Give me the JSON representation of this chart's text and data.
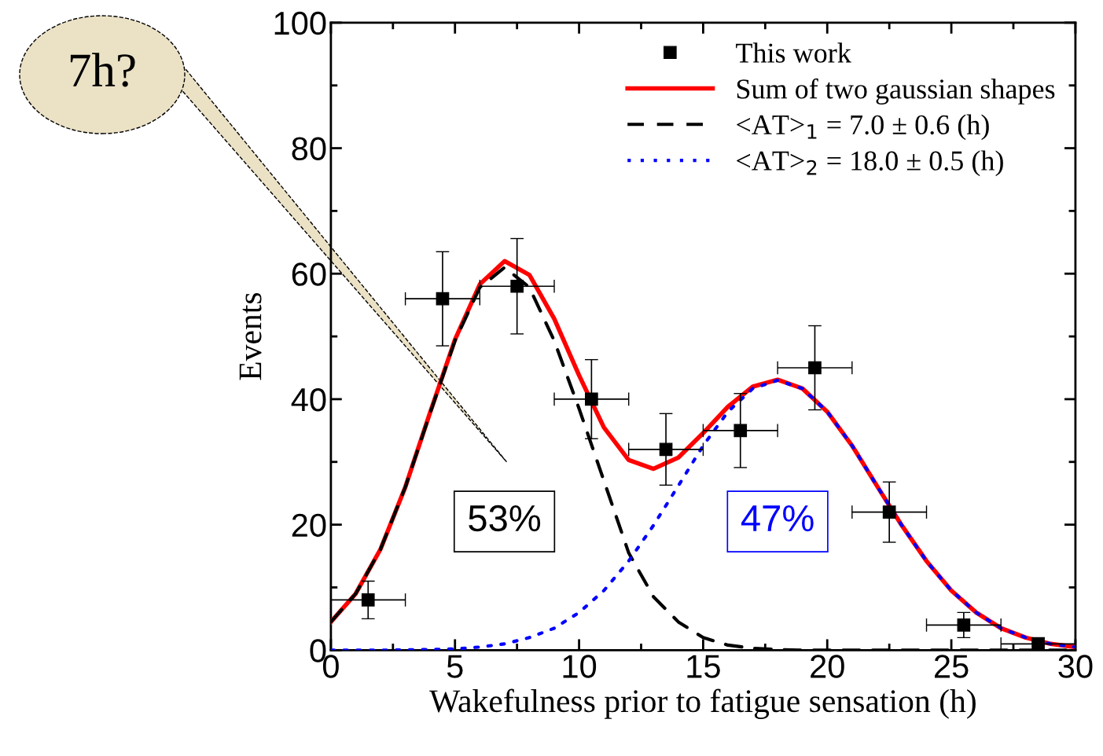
{
  "chart_data": {
    "type": "scatter",
    "xlabel": "Wakefulness prior to fatigue sensation (h)",
    "ylabel": "Events",
    "xlim": [
      0,
      30
    ],
    "xticks": [
      0,
      5,
      10,
      15,
      20,
      25,
      30
    ],
    "ylim": [
      0,
      100
    ],
    "yticks": [
      0,
      20,
      40,
      60,
      80,
      100
    ],
    "grid": false,
    "legend": "top right",
    "series": [
      {
        "name": "This work",
        "marker": "square",
        "color": "#000000",
        "x": [
          1.5,
          4.5,
          7.5,
          10.5,
          13.5,
          16.5,
          19.5,
          22.5,
          25.5,
          28.5
        ],
        "values": [
          8,
          56,
          58,
          40,
          32,
          35,
          45,
          22,
          4,
          1
        ],
        "errors": [
          3,
          7.5,
          7.6,
          6.3,
          5.7,
          5.9,
          6.7,
          4.8,
          2,
          1
        ],
        "xerrors": [
          1.5,
          1.5,
          1.5,
          1.5,
          1.5,
          1.5,
          1.5,
          1.5,
          1.5,
          1.5
        ]
      },
      {
        "name": "Sum of two gaussian shapes",
        "type": "line",
        "line_style": "solid",
        "color": "#ff0000",
        "x": [
          0,
          1,
          2,
          3,
          4,
          5,
          6,
          7,
          8,
          9,
          10,
          11,
          12,
          13,
          14,
          15,
          16,
          17,
          18,
          19,
          20,
          21,
          22,
          23,
          24,
          25,
          26,
          27,
          28,
          29,
          30
        ],
        "values": [
          4.5,
          9.0,
          16.1,
          26.0,
          37.9,
          49.5,
          58.3,
          62.0,
          59.8,
          52.8,
          43.8,
          35.5,
          30.3,
          28.9,
          30.7,
          34.6,
          38.8,
          42.0,
          43.1,
          41.7,
          38.0,
          32.6,
          26.2,
          19.9,
          14.2,
          9.5,
          6.0,
          3.5,
          2.0,
          1.0,
          0.5
        ]
      },
      {
        "name": "<AT>$_{1}$ = 7.0 ± 0.6 (h)",
        "type": "line",
        "line_style": "dashed",
        "color": "#000000",
        "x": [
          0,
          1,
          2,
          3,
          4,
          5,
          6,
          7,
          8,
          9,
          10,
          11,
          12,
          13,
          14,
          15,
          16,
          17,
          18,
          19,
          20,
          22,
          24,
          26,
          28,
          30
        ],
        "values": [
          4.5,
          9.0,
          16.1,
          26.0,
          37.8,
          49.3,
          57.8,
          61.0,
          57.8,
          49.3,
          38.5,
          27.0,
          15.5,
          8.5,
          4.5,
          2.0,
          0.8,
          0.3,
          0.1,
          0,
          0,
          0,
          0,
          0,
          0,
          0
        ]
      },
      {
        "name": "<AT>$_{2}$ = 18.0 ± 0.5 (h)",
        "type": "line",
        "line_style": "dotted",
        "color": "#0000ff",
        "x": [
          0,
          2,
          4,
          5,
          6,
          7,
          8,
          9,
          10,
          11,
          12,
          13,
          14,
          15,
          16,
          17,
          18,
          19,
          20,
          21,
          22,
          23,
          24,
          25,
          26,
          27,
          28,
          29,
          30
        ],
        "values": [
          0,
          0,
          0.1,
          0.2,
          0.5,
          1.0,
          2.0,
          3.5,
          6.0,
          9.5,
          14.2,
          19.9,
          26.2,
          32.6,
          38.0,
          41.7,
          43.0,
          41.7,
          38.0,
          32.6,
          26.2,
          19.9,
          14.2,
          9.5,
          6.0,
          3.5,
          2.0,
          1.0,
          0.5
        ]
      }
    ],
    "annotations": [
      "7h?",
      "53%",
      "47%"
    ]
  }
}
